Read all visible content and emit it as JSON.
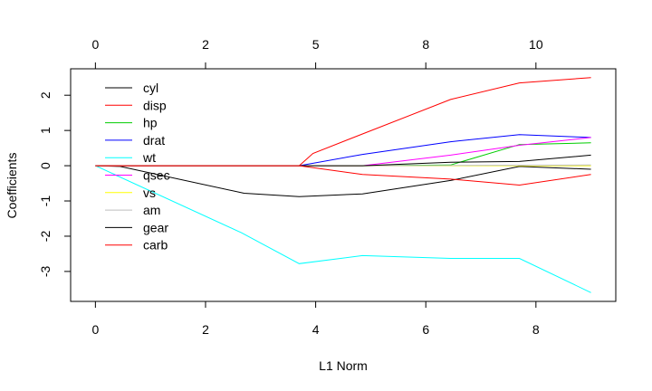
{
  "chart_data": {
    "type": "line",
    "title": "",
    "xlabel": "L1 Norm",
    "ylabel": "Coefficients",
    "xlim": [
      -0.45,
      9.45
    ],
    "ylim": [
      -3.85,
      2.75
    ],
    "x_ticks": [
      0,
      2,
      4,
      6,
      8
    ],
    "y_ticks": [
      -3,
      -2,
      -1,
      0,
      1,
      2
    ],
    "top_axis": {
      "ticks": [
        {
          "x": 0,
          "label": "0"
        },
        {
          "x": 2,
          "label": "2"
        },
        {
          "x": 4,
          "label": "5"
        },
        {
          "x": 6,
          "label": "8"
        },
        {
          "x": 8,
          "label": "10"
        }
      ]
    },
    "grid": false,
    "legend_position": "top-left",
    "series": [
      {
        "name": "cyl",
        "color": "#000000",
        "x": [
          0,
          0.45,
          2.7,
          3.7,
          4.85,
          6.45,
          7.7,
          9.0
        ],
        "y": [
          0,
          -0.02,
          -0.78,
          -0.88,
          -0.8,
          -0.42,
          -0.02,
          -0.1
        ]
      },
      {
        "name": "disp",
        "color": "#ff0000",
        "x": [
          0,
          3.7,
          3.95,
          4.85,
          6.45,
          7.7,
          9.0
        ],
        "y": [
          0,
          0,
          0.35,
          0.9,
          1.88,
          2.35,
          2.5
        ]
      },
      {
        "name": "hp",
        "color": "#00cd00",
        "x": [
          0,
          3.7,
          4.85,
          6.45,
          7.7,
          9.0
        ],
        "y": [
          0,
          0,
          0,
          0.02,
          0.6,
          0.65
        ]
      },
      {
        "name": "drat",
        "color": "#0000ff",
        "x": [
          0,
          3.7,
          4.85,
          6.45,
          7.7,
          9.0
        ],
        "y": [
          0,
          0,
          0.32,
          0.68,
          0.88,
          0.8
        ]
      },
      {
        "name": "wt",
        "color": "#00ffff",
        "x": [
          0,
          2.65,
          3.7,
          4.85,
          6.45,
          7.7,
          9.0
        ],
        "y": [
          0,
          -1.9,
          -2.78,
          -2.55,
          -2.63,
          -2.63,
          -3.6
        ]
      },
      {
        "name": "qsec",
        "color": "#ff00ff",
        "x": [
          0,
          3.7,
          4.85,
          6.45,
          7.7,
          9.0
        ],
        "y": [
          0,
          0,
          0,
          0.3,
          0.58,
          0.8
        ]
      },
      {
        "name": "vs",
        "color": "#ffff00",
        "x": [
          0,
          3.7,
          9.0
        ],
        "y": [
          0,
          0,
          0
        ]
      },
      {
        "name": "am",
        "color": "#bebebe",
        "x": [
          0,
          4.85,
          9.0
        ],
        "y": [
          0,
          0,
          0.02
        ]
      },
      {
        "name": "gear",
        "color": "#000000",
        "x": [
          0,
          3.7,
          4.85,
          6.45,
          7.7,
          9.0
        ],
        "y": [
          0,
          0,
          0,
          0.1,
          0.12,
          0.3
        ]
      },
      {
        "name": "carb",
        "color": "#ff0000",
        "x": [
          0,
          3.7,
          4.85,
          6.45,
          7.7,
          9.0
        ],
        "y": [
          0,
          0,
          -0.25,
          -0.38,
          -0.55,
          -0.25
        ]
      }
    ]
  }
}
